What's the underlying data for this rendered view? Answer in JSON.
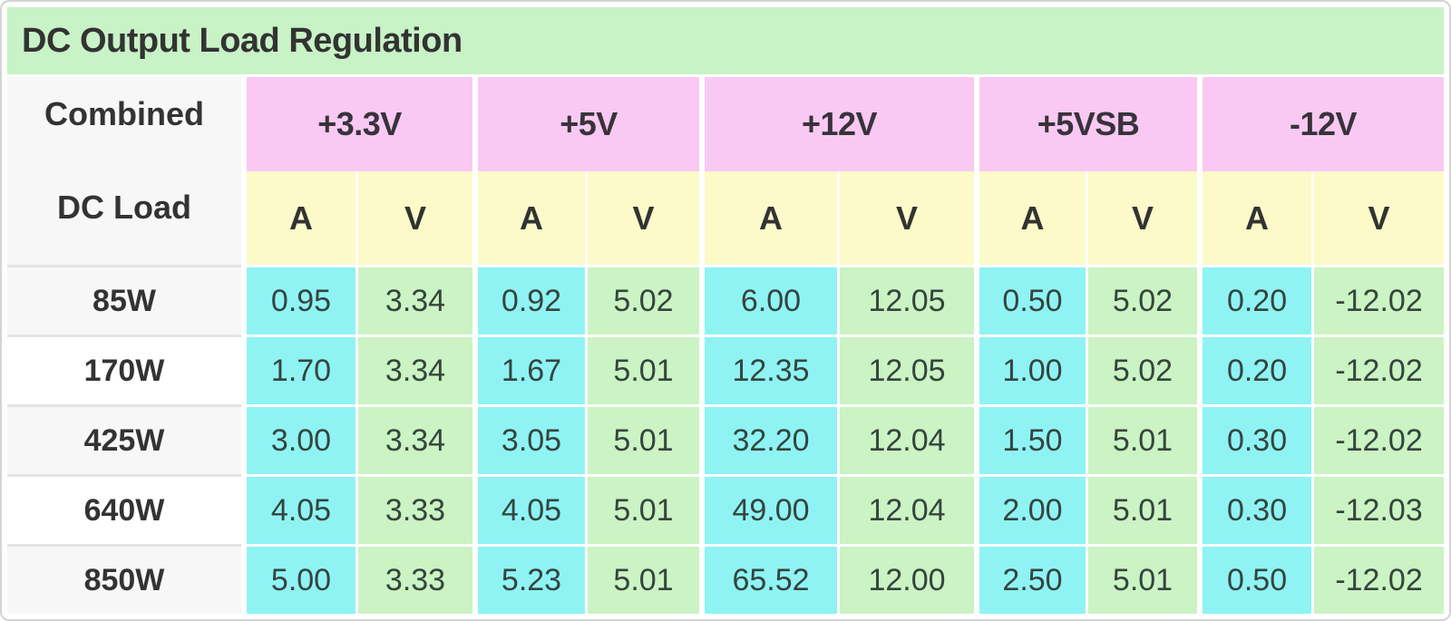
{
  "title": "DC Output Load Regulation",
  "corner": {
    "line1": "Combined",
    "line2": "DC Load"
  },
  "rails": [
    "+3.3V",
    "+5V",
    "+12V",
    "+5VSB",
    "-12V"
  ],
  "unit_headers": [
    "A",
    "V"
  ],
  "table": {
    "rows": [
      {
        "load": "85W",
        "values": [
          "0.95",
          "3.34",
          "0.92",
          "5.02",
          "6.00",
          "12.05",
          "0.50",
          "5.02",
          "0.20",
          "-12.02"
        ]
      },
      {
        "load": "170W",
        "values": [
          "1.70",
          "3.34",
          "1.67",
          "5.01",
          "12.35",
          "12.05",
          "1.00",
          "5.02",
          "0.20",
          "-12.02"
        ]
      },
      {
        "load": "425W",
        "values": [
          "3.00",
          "3.34",
          "3.05",
          "5.01",
          "32.20",
          "12.04",
          "1.50",
          "5.01",
          "0.30",
          "-12.02"
        ]
      },
      {
        "load": "640W",
        "values": [
          "4.05",
          "3.33",
          "4.05",
          "5.01",
          "49.00",
          "12.04",
          "2.00",
          "5.01",
          "0.30",
          "-12.03"
        ]
      },
      {
        "load": "850W",
        "values": [
          "5.00",
          "3.33",
          "5.23",
          "5.01",
          "65.52",
          "12.00",
          "2.50",
          "5.01",
          "0.50",
          "-12.02"
        ]
      }
    ]
  },
  "chart_data": {
    "type": "table",
    "title": "DC Output Load Regulation",
    "row_header": "Combined DC Load",
    "columns": [
      "+3.3V A",
      "+3.3V V",
      "+5V A",
      "+5V V",
      "+12V A",
      "+12V V",
      "+5VSB A",
      "+5VSB V",
      "-12V A",
      "-12V V"
    ],
    "categories": [
      "85W",
      "170W",
      "425W",
      "640W",
      "850W"
    ],
    "rows": [
      [
        0.95,
        3.34,
        0.92,
        5.02,
        6.0,
        12.05,
        0.5,
        5.02,
        0.2,
        -12.02
      ],
      [
        1.7,
        3.34,
        1.67,
        5.01,
        12.35,
        12.05,
        1.0,
        5.02,
        0.2,
        -12.02
      ],
      [
        3.0,
        3.34,
        3.05,
        5.01,
        32.2,
        12.04,
        1.5,
        5.01,
        0.3,
        -12.02
      ],
      [
        4.05,
        3.33,
        4.05,
        5.01,
        49.0,
        12.04,
        2.0,
        5.01,
        0.3,
        -12.03
      ],
      [
        5.0,
        3.33,
        5.23,
        5.01,
        65.52,
        12.0,
        2.5,
        5.01,
        0.5,
        -12.02
      ]
    ]
  },
  "colors": {
    "title_bg": "#c8f3c6",
    "rail_header_bg": "#f9c9f4",
    "unit_header_bg": "#fcfac9",
    "amp_cell_bg": "#8ff3f4",
    "volt_cell_bg": "#cbf3c3",
    "row_header_bg_odd": "#f7f7f7",
    "row_header_bg_even": "#ffffff",
    "header_text": "#333333",
    "data_text": "#34453e",
    "divider": "#e3e3e3",
    "frame_border": "#d4d4d4"
  }
}
